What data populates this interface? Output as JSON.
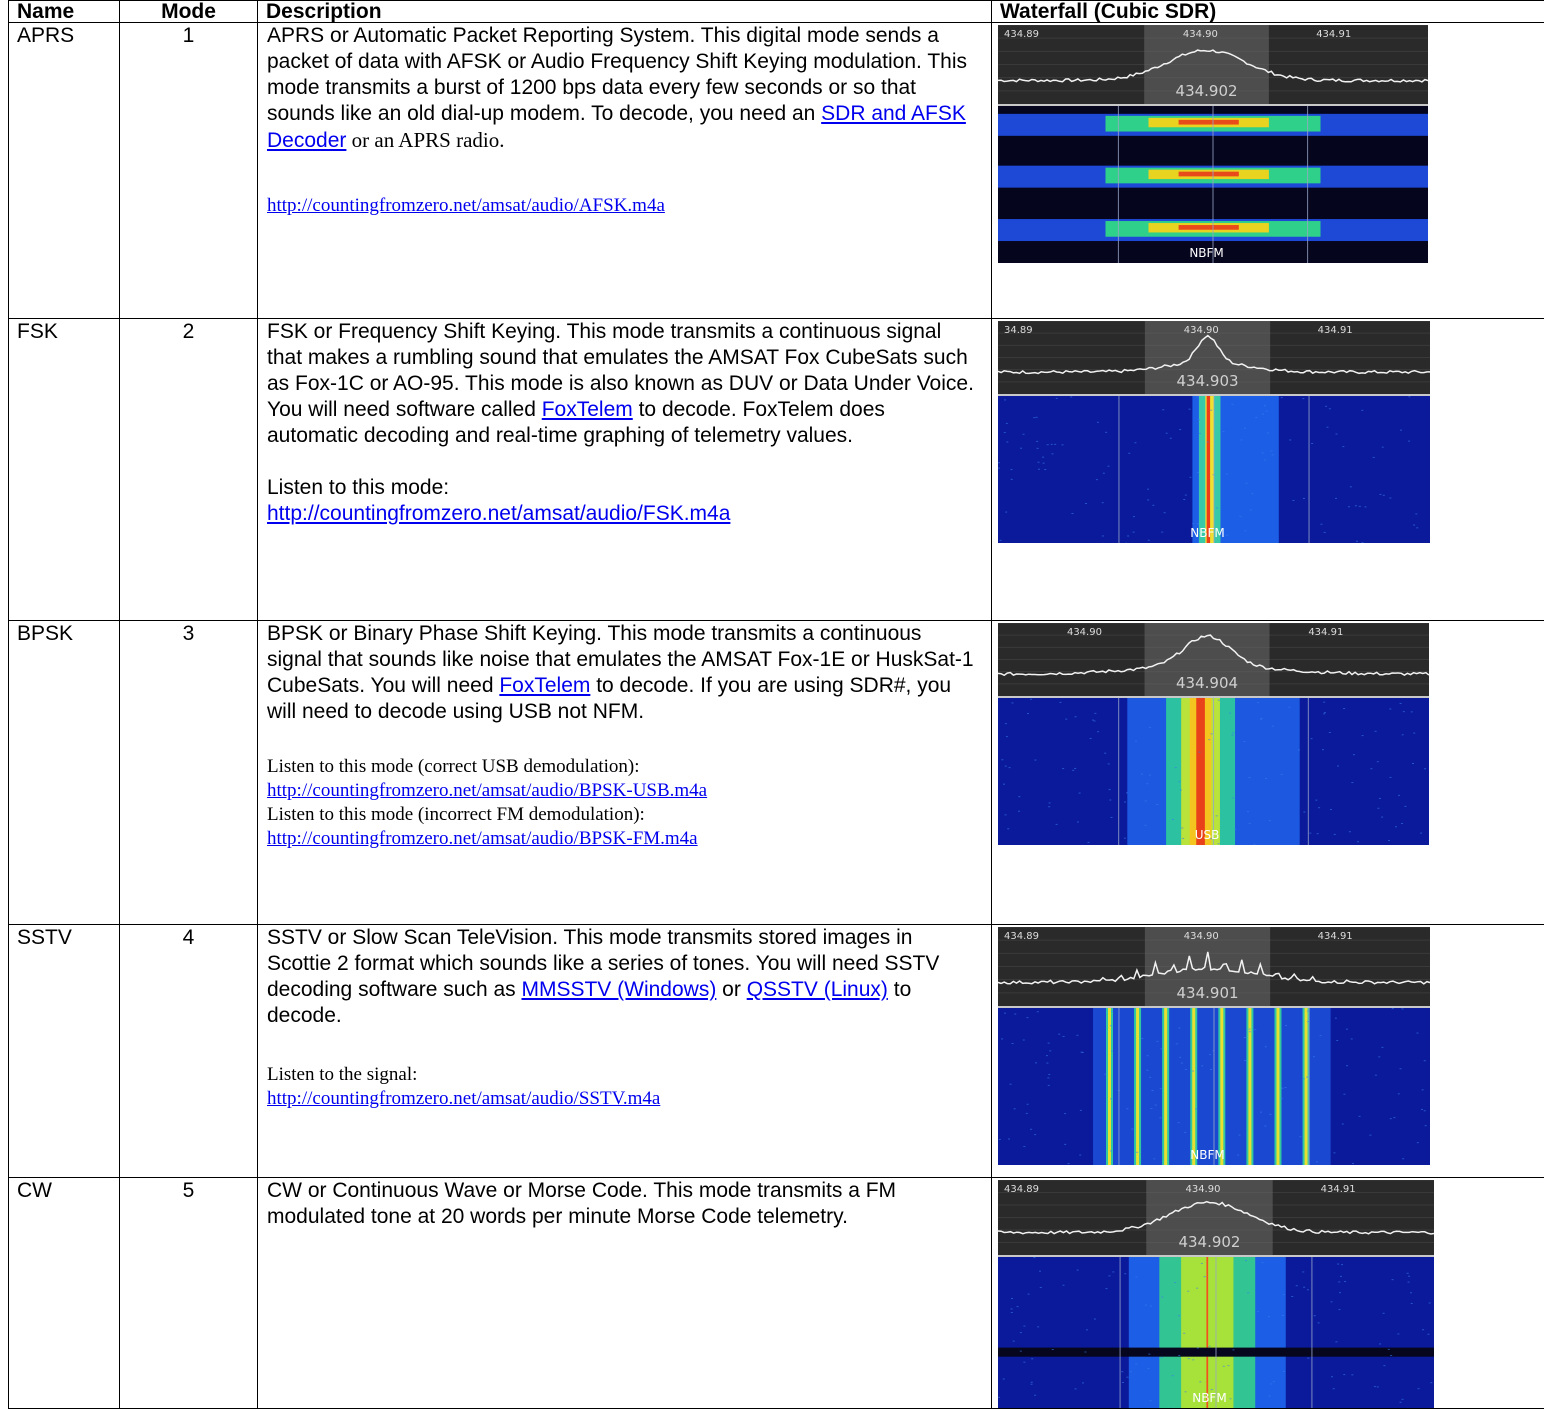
{
  "headers": {
    "name": "Name",
    "mode": "Mode",
    "description": "Description",
    "waterfall": "Waterfall (Cubic SDR)"
  },
  "rows": [
    {
      "name": "APRS",
      "mode": "1",
      "desc_pre": "APRS or Automatic Packet Reporting System. This digital mode sends a packet of data with AFSK or Audio Frequency Shift Keying modulation. This mode transmits a burst of 1200 bps data every few seconds or so that sounds like an old dial-up modem. To decode, you need an ",
      "link1": "SDR and AFSK Decoder",
      "desc_mid": " or an APRS radio.",
      "url": "http://countingfromzero.net/amsat/audio/AFSK.m4a",
      "waterfall": {
        "ticks": [
          "434.89",
          "434.90",
          "434.91"
        ],
        "center": "434.902",
        "demod": "NBFM",
        "pattern": "bursts"
      }
    },
    {
      "name": "FSK",
      "mode": "2",
      "desc_pre": "FSK or Frequency Shift Keying. This mode transmits a continuous signal that makes a rumbling sound that emulates the AMSAT Fox CubeSats such as Fox-1C or AO-95. This mode is also known as DUV or Data Under Voice. You will need software called ",
      "link1": "FoxTelem",
      "desc_mid": " to decode. FoxTelem does automatic decoding and real-time graphing of telemetry values.",
      "listen1": "Listen to this mode:",
      "url": "http://countingfromzero.net/amsat/audio/FSK.m4a",
      "waterfall": {
        "ticks": [
          "34.89",
          "434.90",
          "434.91"
        ],
        "center": "434.903",
        "demod": "NBFM",
        "pattern": "narrow"
      }
    },
    {
      "name": "BPSK",
      "mode": "3",
      "desc_pre": "BPSK or Binary Phase Shift Keying. This mode transmits a continuous signal that sounds like noise that emulates the AMSAT Fox-1E or HuskSat-1 CubeSats. You will need ",
      "link1": "FoxTelem",
      "desc_mid": " to decode. If you are using SDR#, you will need to decode using USB not NFM.",
      "listen1": "Listen to this mode (correct USB demodulation):",
      "url": "http://countingfromzero.net/amsat/audio/BPSK-USB.m4a",
      "listen2": "Listen to this mode (incorrect FM demodulation):",
      "url2": "http://countingfromzero.net/amsat/audio/BPSK-FM.m4a",
      "waterfall": {
        "ticks": [
          "434.90",
          "434.91"
        ],
        "center": "434.904",
        "demod": "USB",
        "pattern": "wide"
      }
    },
    {
      "name": "SSTV",
      "mode": "4",
      "desc_pre": "SSTV or Slow Scan TeleVision. This mode transmits stored images in Scottie 2 format which sounds like a series of tones. You will need SSTV decoding software such as ",
      "link1": "MMSSTV (Windows)",
      "desc_between": " or ",
      "link2": "QSSTV (Linux)",
      "desc_mid": " to decode.",
      "listen1": "Listen to the signal:",
      "url": "http://countingfromzero.net/amsat/audio/SSTV.m4a",
      "waterfall": {
        "ticks": [
          "434.89",
          "434.90",
          "434.91"
        ],
        "center": "434.901",
        "demod": "NBFM",
        "pattern": "tones"
      }
    },
    {
      "name": "CW",
      "mode": "5",
      "desc_pre": "CW or Continuous Wave or Morse Code.  This mode transmits a FM modulated tone at 20 words per minute Morse Code telemetry.",
      "waterfall": {
        "ticks": [
          "434.89",
          "434.90",
          "434.91"
        ],
        "center": "434.902",
        "demod": "NBFM",
        "pattern": "cw"
      }
    }
  ]
}
